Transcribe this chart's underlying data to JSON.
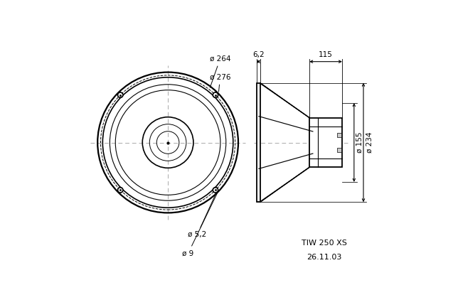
{
  "bg_color": "#ffffff",
  "line_color": "#000000",
  "fig_width": 6.44,
  "fig_height": 4.01,
  "dpi": 100,
  "annotations": {
    "d264": "ø 264",
    "d276": "ø 276",
    "d52": "ø 5,2",
    "d9": "ø 9",
    "d155": "ø 155",
    "d234": "ø 234",
    "dim62": "6,2",
    "dim115": "115",
    "model": "TIW 250 XS",
    "date": "26.11.03"
  }
}
